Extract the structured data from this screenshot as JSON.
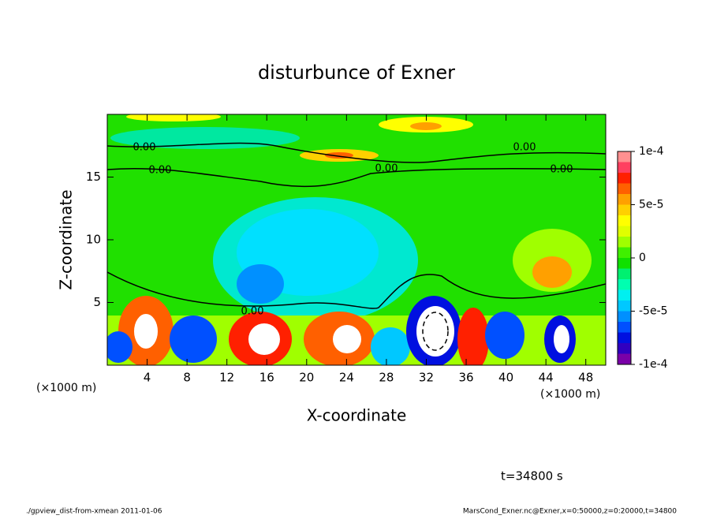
{
  "chart_data": {
    "type": "contour",
    "title": "disturbunce of Exner",
    "x_label": "X-coordinate",
    "y_label": "Z-coordinate",
    "x_unit_label": "(×1000 m)",
    "x_unit_label_right": "(×1000 m)",
    "xlim": [
      0,
      50
    ],
    "ylim": [
      0,
      20
    ],
    "xticks": [
      4,
      8,
      12,
      16,
      20,
      24,
      28,
      32,
      36,
      40,
      44,
      48
    ],
    "yticks": [
      5,
      10,
      15
    ],
    "clim": [
      -0.0001,
      0.0001
    ],
    "cticks": [
      {
        "value": 0.0001,
        "label": "1e-4"
      },
      {
        "value": 5e-05,
        "label": "5e-5"
      },
      0,
      {
        "value": -5e-05,
        "label": "-5e-5"
      },
      {
        "value": -0.0001,
        "label": "-1e-4"
      }
    ],
    "colormap": [
      "#7a00a8",
      "#3000c0",
      "#0010e0",
      "#0050ff",
      "#0090ff",
      "#00c8ff",
      "#00f0f0",
      "#00ffb0",
      "#00f070",
      "#10e000",
      "#40f000",
      "#a0ff00",
      "#e0ff00",
      "#ffff00",
      "#ffd000",
      "#ffa000",
      "#ff6000",
      "#ff2000",
      "#ff4060",
      "#ff9090"
    ],
    "contour_labels": [
      "0.00",
      "0.00",
      "0.00",
      "0.00",
      "0.00",
      "0.00"
    ],
    "time_label": "t=34800 s",
    "footer_left": "./gpview_dist-from-xmean  2011-01-06",
    "footer_right": "MarsCond_Exner.nc@Exner,x=0:50000,z=0:20000,t=34800"
  }
}
